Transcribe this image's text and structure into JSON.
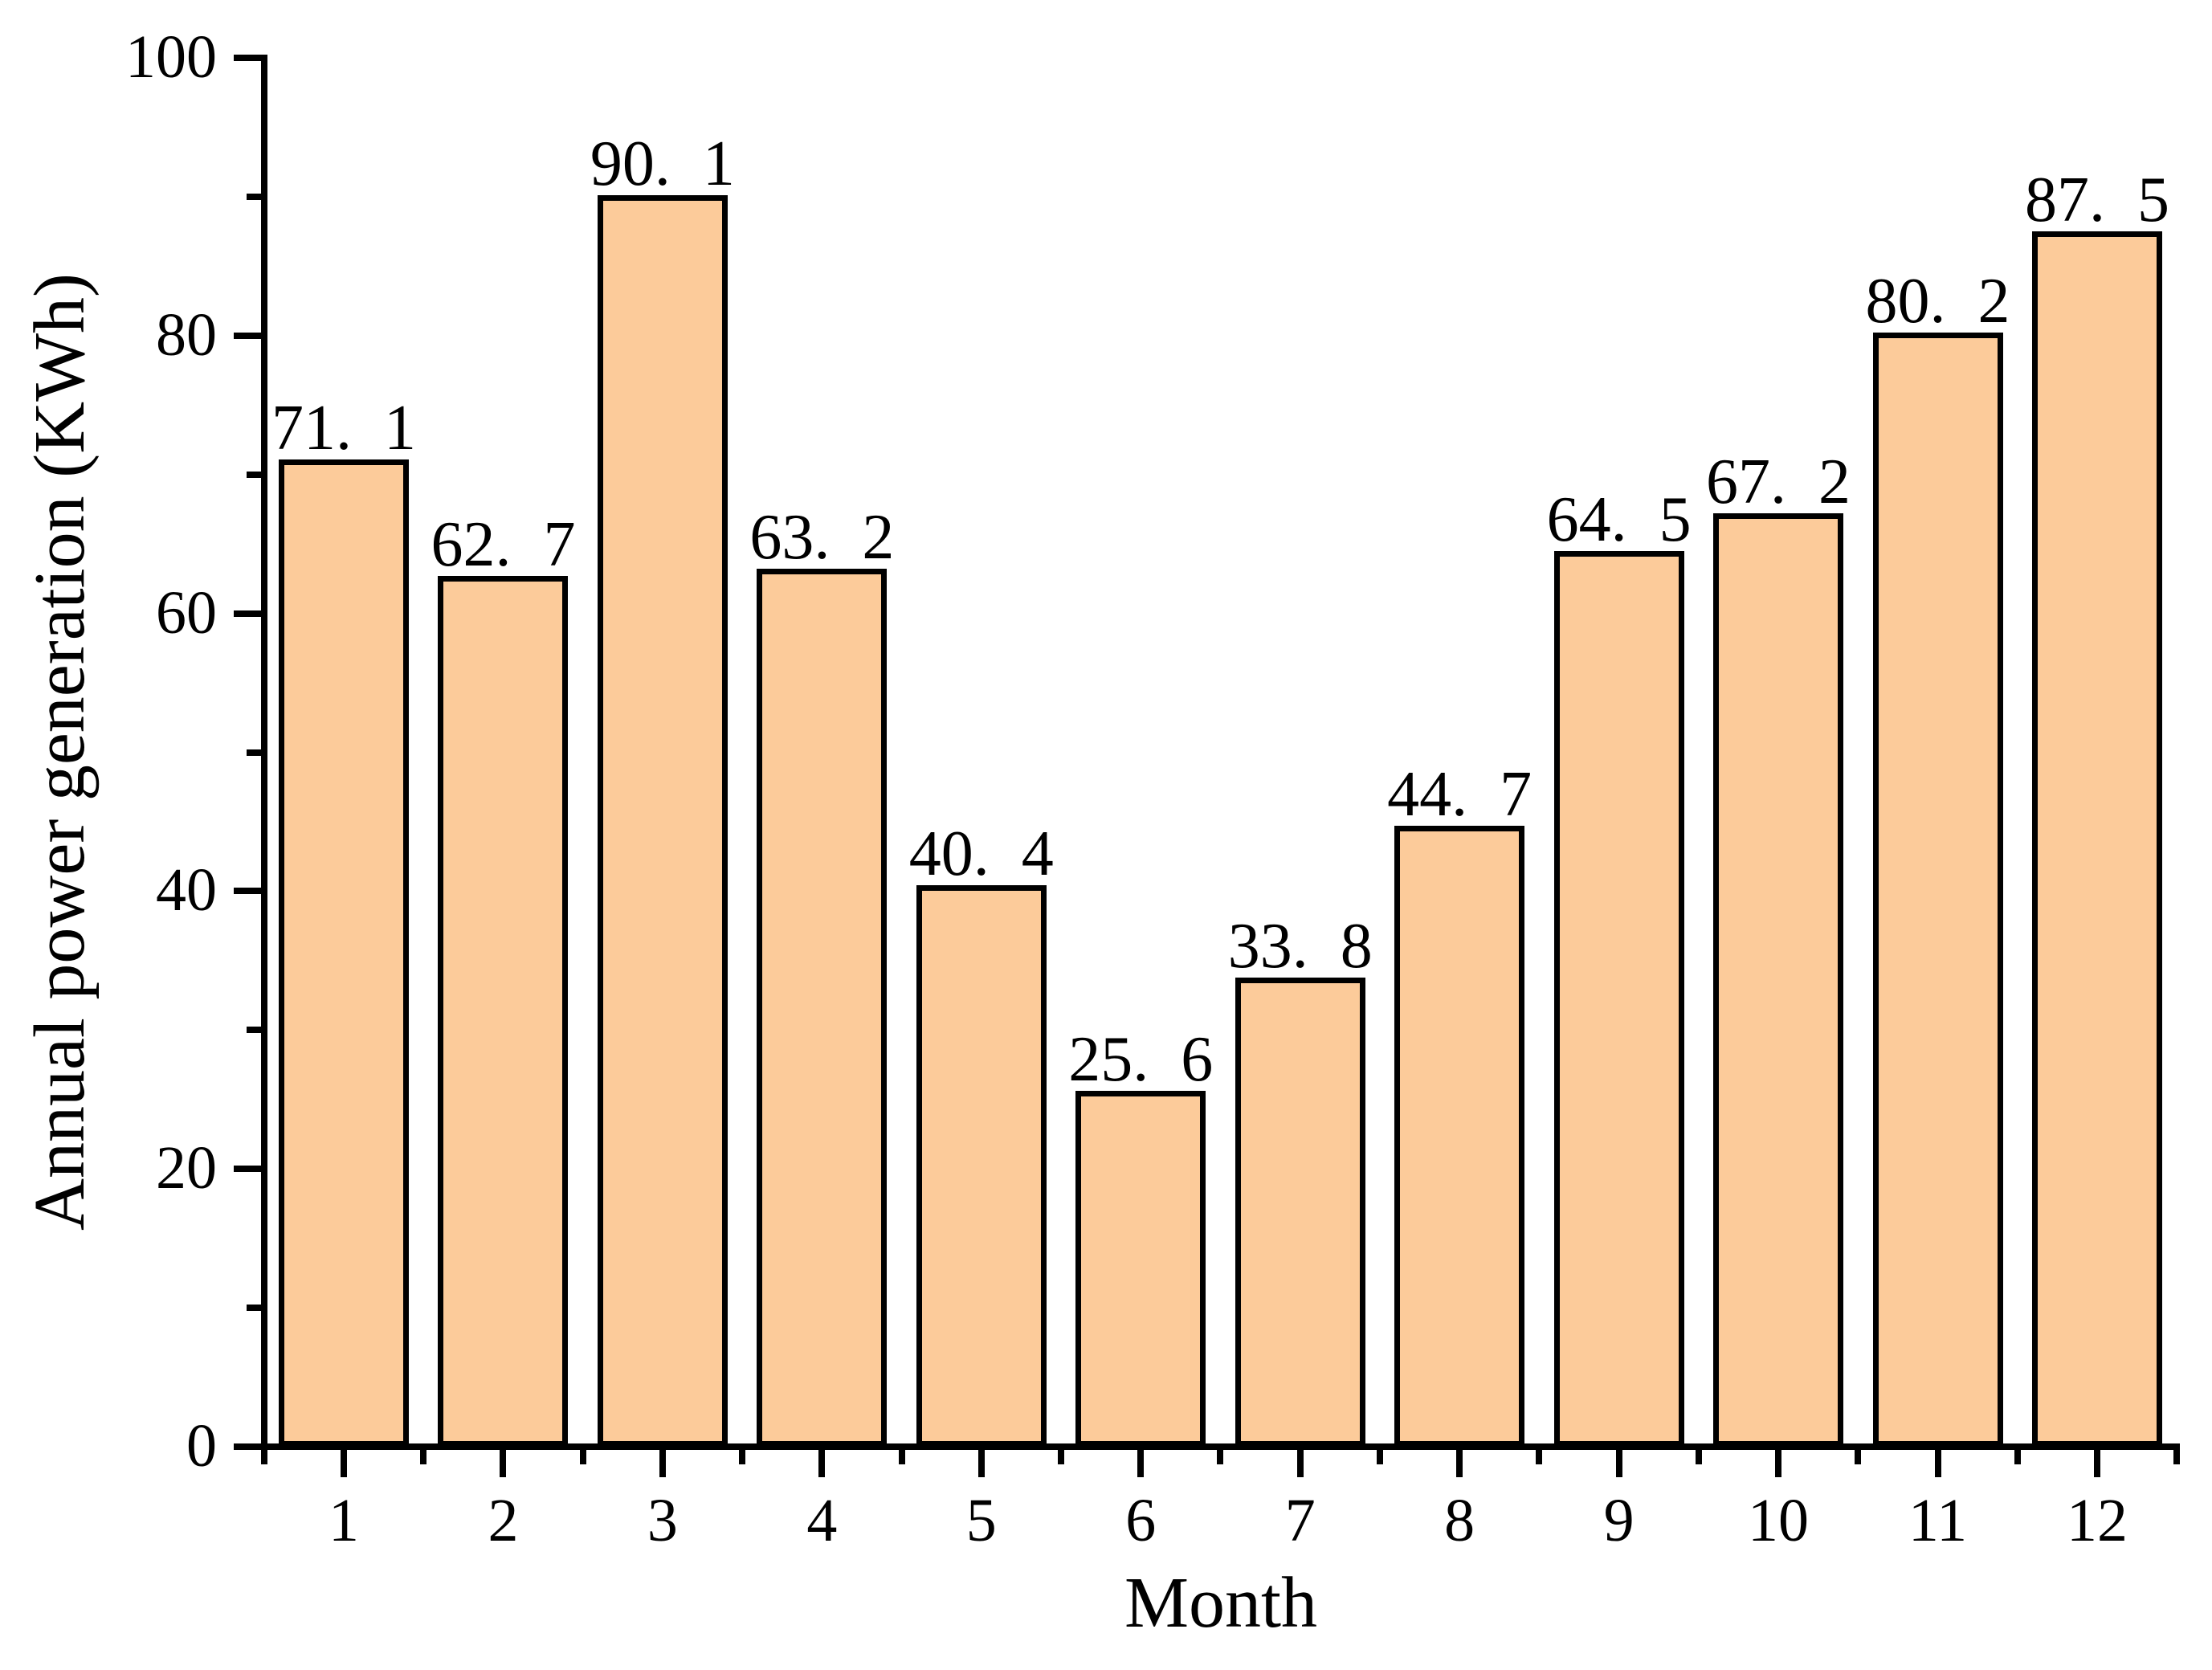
{
  "chart_data": {
    "type": "bar",
    "title": "",
    "xlabel": "Month",
    "ylabel": "Annual power generation (KWh)",
    "categories": [
      "1",
      "2",
      "3",
      "4",
      "5",
      "6",
      "7",
      "8",
      "9",
      "10",
      "11",
      "12"
    ],
    "values": [
      71.1,
      62.7,
      90.1,
      63.2,
      40.4,
      25.6,
      33.8,
      44.7,
      64.5,
      67.2,
      80.2,
      87.5
    ],
    "value_labels": [
      "71.  1",
      "62.  7",
      "90.  1",
      "63.  2",
      "40.  4",
      "25.  6",
      "33.  8",
      "44.  7",
      "64.  5",
      "67.  2",
      "80.  2",
      "87.  5"
    ],
    "ylim": [
      0,
      100
    ],
    "xlim": [
      0.5,
      12.5
    ],
    "y_major_ticks": [
      0,
      20,
      40,
      60,
      80,
      100
    ],
    "y_minor_ticks": [
      10,
      30,
      50,
      70,
      90
    ],
    "x_minor_ticks": [
      0.5,
      1.5,
      2.5,
      3.5,
      4.5,
      5.5,
      6.5,
      7.5,
      8.5,
      9.5,
      10.5,
      11.5,
      12.5
    ],
    "grid": "off",
    "legend": "none",
    "bar_fill": "#FCCB9A",
    "bar_edge": "#000000",
    "axis_color": "#000000",
    "background": "#FFFFFF"
  }
}
